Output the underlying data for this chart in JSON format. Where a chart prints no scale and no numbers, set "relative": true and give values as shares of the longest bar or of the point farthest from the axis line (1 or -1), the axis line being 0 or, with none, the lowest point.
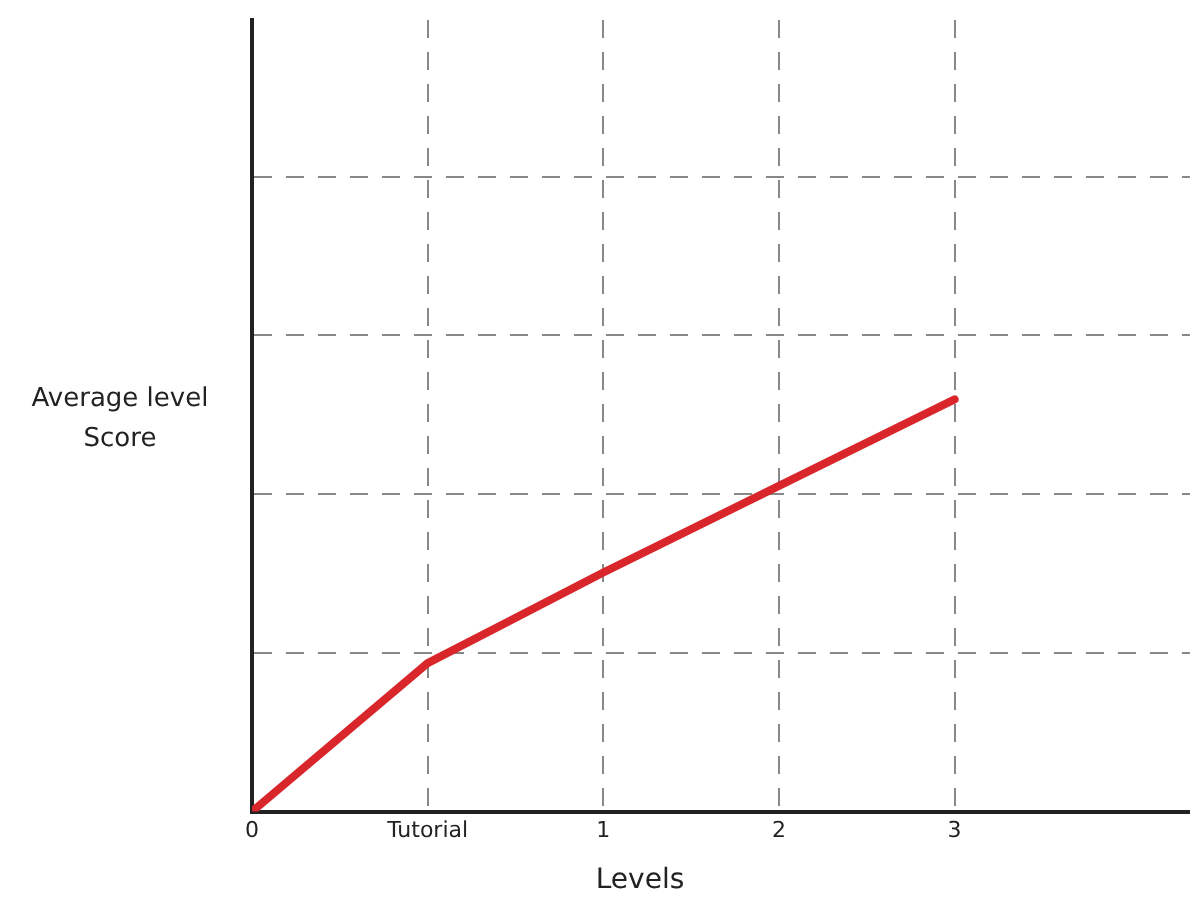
{
  "chart_data": {
    "type": "line",
    "xlabel": "Levels",
    "ylabel": "Average level\nScore",
    "categories": [
      "0",
      "Tutorial",
      "1",
      "2",
      "3"
    ],
    "series": [
      {
        "color": "#d8262b",
        "values": [
          0,
          0.36,
          0.58,
          0.79,
          1
        ]
      }
    ],
    "relative": true,
    "grid": true,
    "legend": false,
    "marker": "none",
    "line_style": "solid"
  }
}
